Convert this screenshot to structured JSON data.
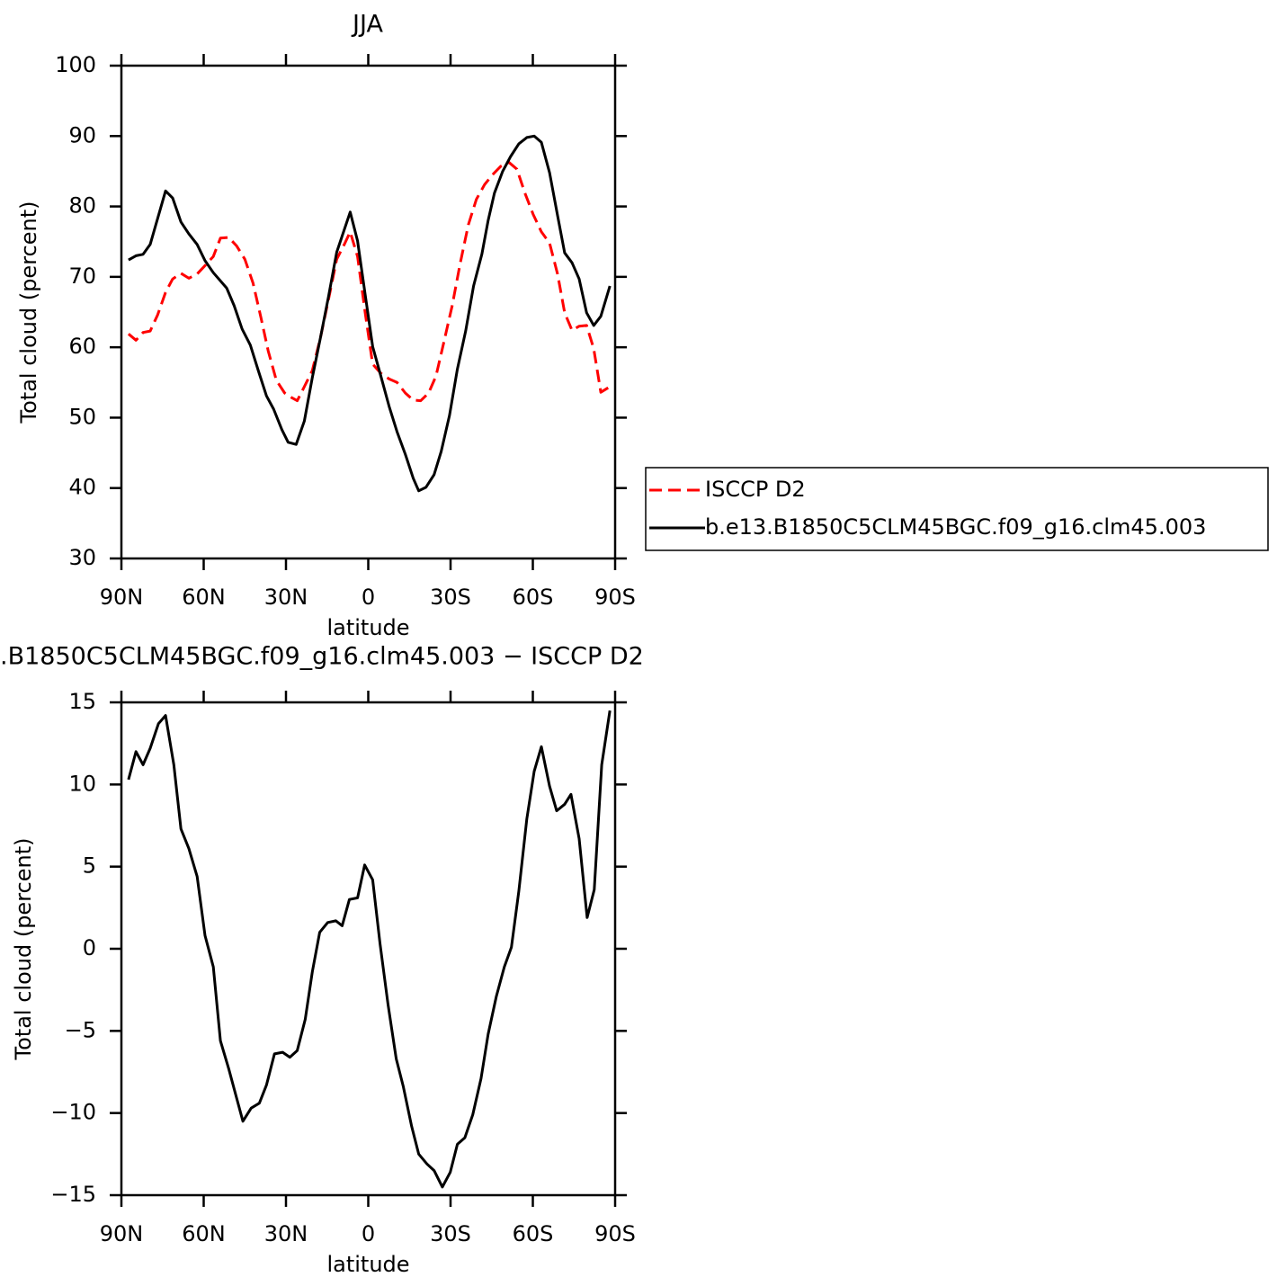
{
  "chart_data": [
    {
      "type": "line",
      "title": "JJA",
      "xlabel": "latitude",
      "ylabel": "Total cloud (percent)",
      "xlim": [
        90,
        -90
      ],
      "xticks": [
        {
          "value": 90,
          "label": "90N"
        },
        {
          "value": 60,
          "label": "60N"
        },
        {
          "value": 30,
          "label": "30N"
        },
        0,
        {
          "value": -30,
          "label": "30S"
        },
        {
          "value": -60,
          "label": "60S"
        },
        {
          "value": -90,
          "label": "90S"
        }
      ],
      "ylim": [
        30,
        100
      ],
      "yticks": [
        30,
        40,
        50,
        60,
        70,
        80,
        90,
        100
      ],
      "legend": "right",
      "series": [
        {
          "name": "ISCCP D2",
          "color": "#ff0000",
          "dashed": true,
          "x": [
            87.4,
            84.7,
            82.1,
            79.5,
            76.8,
            73.9,
            71.3,
            68.3,
            65.4,
            62.4,
            59.5,
            56.5,
            53.9,
            50.9,
            48.0,
            45.0,
            42.0,
            39.1,
            36.5,
            33.5,
            30.5,
            28.2,
            25.9,
            23.3,
            20.4,
            17.4,
            14.5,
            11.5,
            8.5,
            6.6,
            3.9,
            1.0,
            -1.6,
            -4.6,
            -7.6,
            -10.5,
            -13.5,
            -16.4,
            -19.1,
            -22.0,
            -24.7,
            -27.6,
            -30.6,
            -33.5,
            -36.5,
            -39.4,
            -42.4,
            -45.3,
            -48.3,
            -51.2,
            -54.2,
            -57.1,
            -60.1,
            -63.1,
            -66.1,
            -69.0,
            -71.6,
            -74.3,
            -76.9,
            -79.6,
            -82.2,
            -84.8,
            -88.1
          ],
          "values": [
            61.9,
            61.0,
            62.1,
            62.3,
            64.6,
            67.8,
            69.7,
            70.5,
            69.8,
            70.4,
            71.6,
            72.9,
            75.5,
            75.6,
            74.4,
            72.5,
            69.1,
            64.2,
            59.5,
            55.3,
            53.5,
            52.9,
            52.4,
            54.4,
            56.7,
            61.4,
            66.8,
            72.5,
            74.8,
            76.4,
            72.9,
            64.6,
            57.6,
            56.3,
            55.5,
            55.0,
            53.5,
            52.5,
            52.4,
            53.5,
            55.9,
            60.8,
            65.9,
            71.9,
            77.4,
            81.0,
            83.1,
            84.5,
            85.7,
            86.3,
            85.3,
            81.9,
            78.9,
            76.4,
            74.8,
            70.4,
            64.9,
            62.4,
            63.0,
            63.1,
            59.8,
            53.6,
            54.4
          ]
        },
        {
          "name": "b.e13.B1850C5CLM45BGC.f09_g16.clm45.003",
          "color": "#000000",
          "dashed": false,
          "x": [
            87.4,
            84.7,
            82.1,
            79.5,
            73.9,
            71.3,
            68.3,
            65.4,
            62.4,
            59.5,
            56.5,
            51.6,
            48.9,
            46.0,
            43.0,
            40.1,
            37.1,
            34.5,
            31.5,
            29.2,
            26.3,
            23.3,
            20.4,
            17.4,
            14.5,
            11.5,
            6.6,
            3.9,
            1.0,
            -1.6,
            -4.6,
            -7.6,
            -10.5,
            -13.5,
            -16.4,
            -18.4,
            -21.0,
            -24.0,
            -26.6,
            -29.6,
            -32.5,
            -35.5,
            -38.4,
            -41.4,
            -43.7,
            -46.0,
            -49.0,
            -51.9,
            -54.9,
            -57.8,
            -60.5,
            -63.1,
            -66.1,
            -69.0,
            -71.6,
            -74.3,
            -76.9,
            -79.6,
            -82.2,
            -84.8,
            -88.1
          ],
          "values": [
            72.4,
            73.0,
            73.2,
            74.6,
            82.2,
            81.2,
            77.8,
            76.1,
            74.6,
            72.3,
            70.6,
            68.4,
            65.9,
            62.6,
            60.3,
            56.7,
            53.1,
            51.2,
            48.3,
            46.5,
            46.2,
            49.5,
            55.7,
            61.4,
            67.2,
            73.5,
            79.2,
            75.1,
            67.2,
            60.1,
            55.9,
            51.6,
            48.0,
            44.8,
            41.4,
            39.6,
            40.1,
            41.9,
            45.2,
            50.3,
            56.9,
            62.3,
            68.7,
            73.2,
            78.0,
            81.9,
            85.0,
            87.1,
            88.9,
            89.8,
            90.0,
            89.1,
            84.8,
            78.7,
            73.4,
            72.0,
            69.7,
            64.9,
            63.1,
            64.4,
            68.7
          ]
        }
      ]
    },
    {
      "type": "line",
      "title": ".B1850C5CLM45BGC.f09_g16.clm45.003 − ISCCP D2",
      "xlabel": "latitude",
      "ylabel": "Total cloud (percent)",
      "xlim": [
        90,
        -90
      ],
      "xticks": [
        {
          "value": 90,
          "label": "90N"
        },
        {
          "value": 60,
          "label": "60N"
        },
        {
          "value": 30,
          "label": "30N"
        },
        0,
        {
          "value": -30,
          "label": "30S"
        },
        {
          "value": -60,
          "label": "60S"
        },
        {
          "value": -90,
          "label": "90S"
        }
      ],
      "ylim": [
        -15,
        15
      ],
      "yticks": [
        {
          "value": -15,
          "label": "−15"
        },
        {
          "value": -10,
          "label": "−10"
        },
        {
          "value": -5,
          "label": "−5"
        },
        0,
        5,
        10,
        15
      ],
      "series": [
        {
          "color": "#000000",
          "dashed": false,
          "x": [
            87.4,
            84.7,
            82.1,
            79.5,
            76.5,
            73.9,
            70.9,
            68.3,
            65.4,
            62.4,
            59.5,
            56.5,
            53.9,
            50.9,
            48.3,
            45.7,
            42.7,
            39.7,
            37.1,
            34.2,
            31.2,
            28.6,
            25.9,
            23.0,
            20.4,
            17.7,
            14.8,
            11.8,
            9.5,
            6.9,
            3.9,
            1.3,
            -1.6,
            -4.3,
            -7.2,
            -10.2,
            -12.8,
            -15.8,
            -18.4,
            -21.4,
            -24.0,
            -27.0,
            -29.9,
            -32.5,
            -35.2,
            -38.1,
            -41.1,
            -43.7,
            -46.7,
            -49.6,
            -52.2,
            -54.9,
            -57.8,
            -60.5,
            -63.1,
            -66.1,
            -68.7,
            -71.6,
            -73.9,
            -76.9,
            -79.8,
            -82.4,
            -85.1,
            -88.1
          ],
          "values": [
            10.3,
            12.0,
            11.2,
            12.2,
            13.7,
            14.2,
            11.2,
            7.3,
            6.1,
            4.4,
            0.8,
            -1.1,
            -5.6,
            -7.3,
            -8.9,
            -10.5,
            -9.7,
            -9.4,
            -8.3,
            -6.4,
            -6.3,
            -6.6,
            -6.2,
            -4.3,
            -1.4,
            1.0,
            1.6,
            1.7,
            1.4,
            3.0,
            3.1,
            5.1,
            4.2,
            0.3,
            -3.4,
            -6.7,
            -8.4,
            -10.8,
            -12.5,
            -13.1,
            -13.5,
            -14.5,
            -13.6,
            -11.9,
            -11.5,
            -10.1,
            -7.9,
            -5.2,
            -2.9,
            -1.1,
            0.1,
            3.5,
            7.9,
            10.8,
            12.3,
            9.9,
            8.4,
            8.8,
            9.4,
            6.7,
            1.9,
            3.6,
            11.2,
            14.5
          ]
        }
      ]
    }
  ]
}
